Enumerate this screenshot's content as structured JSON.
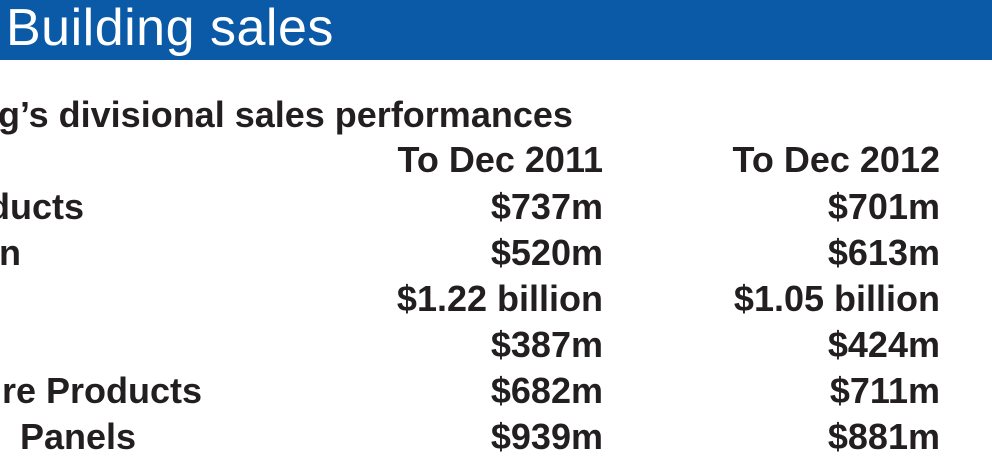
{
  "title": "Building sales",
  "subtitle": "lding’s divisional sales performances",
  "columns": [
    "To Dec 2011",
    "To Dec 2012"
  ],
  "rows": [
    {
      "label": "oducts",
      "v2011": "$737m",
      "v2012": "$701m"
    },
    {
      "label": "n",
      "v2011": "$520m",
      "v2012": "$613m"
    },
    {
      "label": "",
      "v2011": "$1.22 billion",
      "v2012": "$1.05 billion"
    },
    {
      "label": "",
      "v2011": "$387m",
      "v2012": "$424m"
    },
    {
      "label": "re Products",
      "v2011": "$682m",
      "v2012": "$711m"
    },
    {
      "label": "Panels",
      "v2011": "$939m",
      "v2012": "$881m"
    }
  ],
  "colors": {
    "title_bar": "#0b5aa8",
    "title_text": "#ffffff",
    "body_text": "#231f20"
  }
}
